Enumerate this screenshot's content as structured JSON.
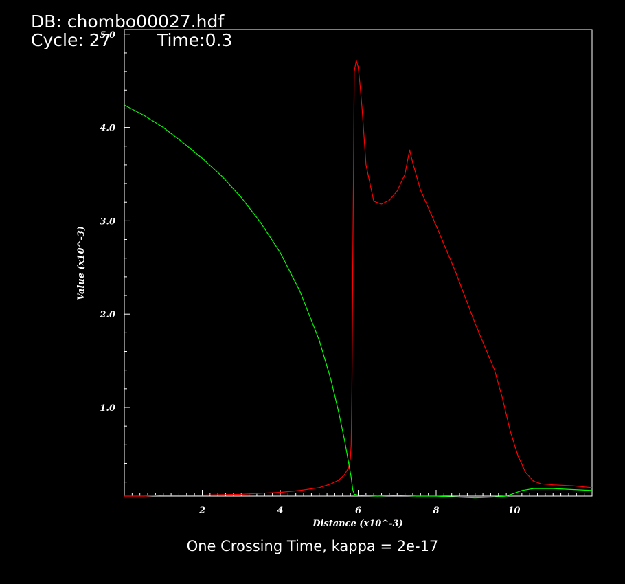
{
  "header": {
    "db": "DB: chombo00027.hdf",
    "cycle": "Cycle: 27",
    "time": "Time:0.3"
  },
  "caption": "One Crossing Time, kappa = 2e-17",
  "chart_data": {
    "type": "line",
    "xlabel": "Distance (x10^-3)",
    "ylabel": "Value (x10^-3)",
    "xlim": [
      0,
      12
    ],
    "ylim": [
      0.05,
      5.05
    ],
    "x_ticks": [
      2,
      4,
      6,
      8,
      10
    ],
    "x_tick_labels": [
      "2",
      "4",
      "6",
      "8",
      "10"
    ],
    "y_ticks": [
      1.0,
      2.0,
      3.0,
      4.0,
      5.0
    ],
    "y_tick_labels": [
      "1.0",
      "2.0",
      "3.0",
      "4.0",
      "5.0"
    ],
    "grid": false,
    "colors": {
      "background": "#000000",
      "axes": "#ffffff",
      "red_series": "#ff0000",
      "green_series": "#00ff00"
    },
    "series": [
      {
        "color": "#ff0000",
        "x": [
          0,
          0.5,
          1,
          2,
          3,
          3.5,
          4,
          4.5,
          5,
          5.3,
          5.5,
          5.65,
          5.75,
          5.8,
          5.82,
          5.84,
          5.86,
          5.88,
          5.9,
          5.95,
          6.0,
          6.05,
          6.1,
          6.2,
          6.4,
          6.6,
          6.8,
          7.0,
          7.2,
          7.32,
          7.4,
          7.6,
          8.0,
          8.5,
          9.0,
          9.5,
          9.7,
          9.9,
          10.1,
          10.3,
          10.5,
          10.7,
          11.0,
          11.5,
          12.0
        ],
        "y": [
          0.05,
          0.05,
          0.06,
          0.06,
          0.07,
          0.08,
          0.09,
          0.11,
          0.14,
          0.18,
          0.22,
          0.28,
          0.35,
          0.45,
          0.6,
          1.2,
          2.5,
          3.5,
          4.6,
          4.72,
          4.65,
          4.45,
          4.2,
          3.6,
          3.21,
          3.18,
          3.22,
          3.32,
          3.5,
          3.76,
          3.62,
          3.33,
          2.95,
          2.45,
          1.9,
          1.4,
          1.1,
          0.75,
          0.48,
          0.3,
          0.21,
          0.18,
          0.17,
          0.16,
          0.14
        ]
      },
      {
        "color": "#00ff00",
        "x": [
          0,
          0.5,
          1,
          1.5,
          2,
          2.5,
          3,
          3.5,
          4,
          4.5,
          5,
          5.3,
          5.5,
          5.65,
          5.75,
          5.82,
          5.86,
          5.9,
          6.0,
          6.5,
          7.0,
          7.5,
          8.0,
          8.5,
          9.0,
          9.5,
          9.8,
          10.0,
          10.2,
          10.5,
          11.0,
          11.5,
          12.0
        ],
        "y": [
          4.24,
          4.13,
          4.0,
          3.84,
          3.67,
          3.48,
          3.25,
          2.98,
          2.66,
          2.25,
          1.72,
          1.3,
          0.95,
          0.65,
          0.42,
          0.25,
          0.12,
          0.07,
          0.06,
          0.05,
          0.06,
          0.05,
          0.05,
          0.04,
          0.03,
          0.04,
          0.05,
          0.08,
          0.11,
          0.13,
          0.13,
          0.12,
          0.11
        ]
      }
    ]
  }
}
